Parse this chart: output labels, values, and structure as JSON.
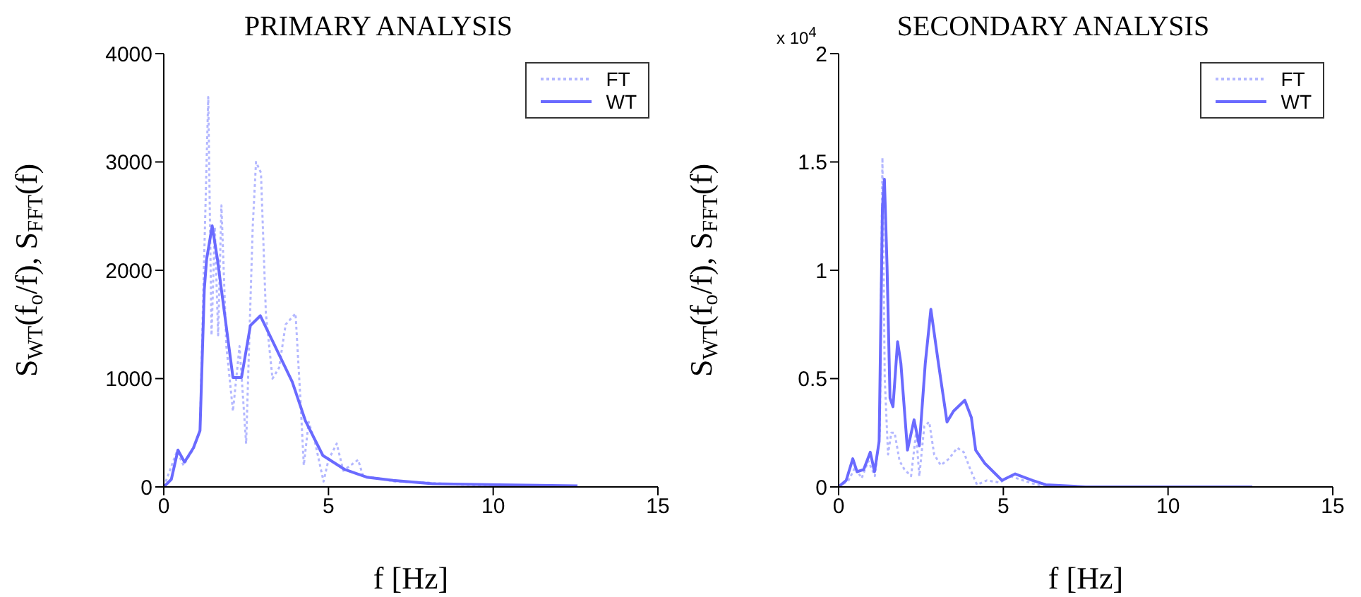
{
  "chart_data": [
    {
      "type": "line",
      "title": "PRIMARY ANALYSIS",
      "xlabel": "f [Hz]",
      "ylabel": "S$_{WT}$(f$_{o}$/f), S$_{FFT}$(f)",
      "xlim": [
        0,
        15
      ],
      "xticks": [
        0,
        5,
        10,
        15
      ],
      "ylim": [
        0,
        4000
      ],
      "yticks": [
        0,
        1000,
        2000,
        3000,
        4000
      ],
      "legend": "top right",
      "marker": "none",
      "series": [
        {
          "name": "FT",
          "color": "#b4b8ff",
          "line_style": "dotted",
          "x": [
            0,
            0.4,
            0.6,
            0.9,
            1.1,
            1.2,
            1.35,
            1.45,
            1.55,
            1.65,
            1.75,
            1.9,
            2.1,
            2.3,
            2.5,
            2.7,
            2.8,
            2.95,
            3.1,
            3.3,
            3.5,
            3.7,
            3.85,
            4.0,
            4.15,
            4.25,
            4.4,
            4.6,
            4.85,
            5.0,
            5.25,
            5.45,
            5.9,
            6.05,
            6.5,
            7,
            8,
            9,
            10,
            12.5
          ],
          "values": [
            0,
            330,
            200,
            350,
            520,
            1800,
            3600,
            1400,
            2400,
            1400,
            2600,
            1300,
            700,
            1300,
            400,
            2400,
            3000,
            2900,
            1600,
            1000,
            1100,
            1500,
            1550,
            1600,
            800,
            200,
            600,
            400,
            50,
            250,
            400,
            150,
            250,
            100,
            80,
            50,
            40,
            20,
            10,
            10
          ]
        },
        {
          "name": "WT",
          "color": "#6a6aff",
          "line_style": "solid",
          "x": [
            0,
            0.23,
            0.43,
            0.63,
            0.9,
            1.1,
            1.23,
            1.3,
            1.47,
            1.63,
            2.1,
            2.36,
            2.63,
            2.93,
            3.36,
            3.9,
            4.3,
            4.83,
            5.5,
            6.16,
            6.96,
            8.16,
            10.16,
            12.56
          ],
          "values": [
            0,
            70,
            340,
            230,
            360,
            520,
            1820,
            2100,
            2410,
            2100,
            1010,
            1010,
            1490,
            1580,
            1310,
            970,
            610,
            290,
            160,
            90,
            60,
            30,
            20,
            10
          ]
        }
      ]
    },
    {
      "type": "line",
      "title": "SECONDARY ANALYSIS",
      "xlabel": "f [Hz]",
      "ylabel": "S$_{WT}$(f$_{o}$/f), S$_{FFT}$(f)",
      "annotations": [
        "x 10$^{4}$"
      ],
      "xlim": [
        0,
        15
      ],
      "xticks": [
        0,
        5,
        10,
        15
      ],
      "ylim": [
        0,
        2
      ],
      "yticks": [
        0,
        0.5,
        1,
        1.5,
        2
      ],
      "legend": "top right",
      "marker": "none",
      "series": [
        {
          "name": "FT",
          "color": "#b4b8ff",
          "line_style": "dotted",
          "x": [
            0,
            0.3,
            0.5,
            0.7,
            0.9,
            1.1,
            1.25,
            1.33,
            1.4,
            1.5,
            1.6,
            1.7,
            1.85,
            2.0,
            2.2,
            2.35,
            2.45,
            2.6,
            2.75,
            2.9,
            3.1,
            3.35,
            3.6,
            3.8,
            4.0,
            4.2,
            4.5,
            4.9,
            5.2,
            5.6,
            6.0,
            6.5,
            8,
            10,
            12.5
          ],
          "values": [
            0,
            0.03,
            0.09,
            0.04,
            0.12,
            0.05,
            0.25,
            1.52,
            0.5,
            0.15,
            0.25,
            0.25,
            0.12,
            0.08,
            0.05,
            0.25,
            0.05,
            0.28,
            0.3,
            0.15,
            0.1,
            0.13,
            0.18,
            0.16,
            0.08,
            0.01,
            0.03,
            0.02,
            0.05,
            0.03,
            0.01,
            0,
            0,
            0,
            0
          ]
        },
        {
          "name": "WT",
          "color": "#6a6aff",
          "line_style": "solid",
          "x": [
            0,
            0.23,
            0.43,
            0.56,
            0.76,
            0.96,
            1.09,
            1.23,
            1.33,
            1.39,
            1.47,
            1.56,
            1.65,
            1.79,
            1.89,
            2.09,
            2.29,
            2.45,
            2.63,
            2.8,
            3.03,
            3.29,
            3.49,
            3.83,
            4.03,
            4.16,
            4.43,
            4.96,
            5.36,
            5.89,
            6.29,
            7.5,
            10.16,
            12.56
          ],
          "values": [
            0,
            0.03,
            0.13,
            0.07,
            0.08,
            0.16,
            0.07,
            0.21,
            1.29,
            1.42,
            1.02,
            0.41,
            0.37,
            0.67,
            0.57,
            0.17,
            0.31,
            0.19,
            0.57,
            0.82,
            0.57,
            0.3,
            0.35,
            0.4,
            0.32,
            0.17,
            0.11,
            0.03,
            0.06,
            0.03,
            0.01,
            0,
            0,
            0
          ]
        }
      ]
    }
  ]
}
